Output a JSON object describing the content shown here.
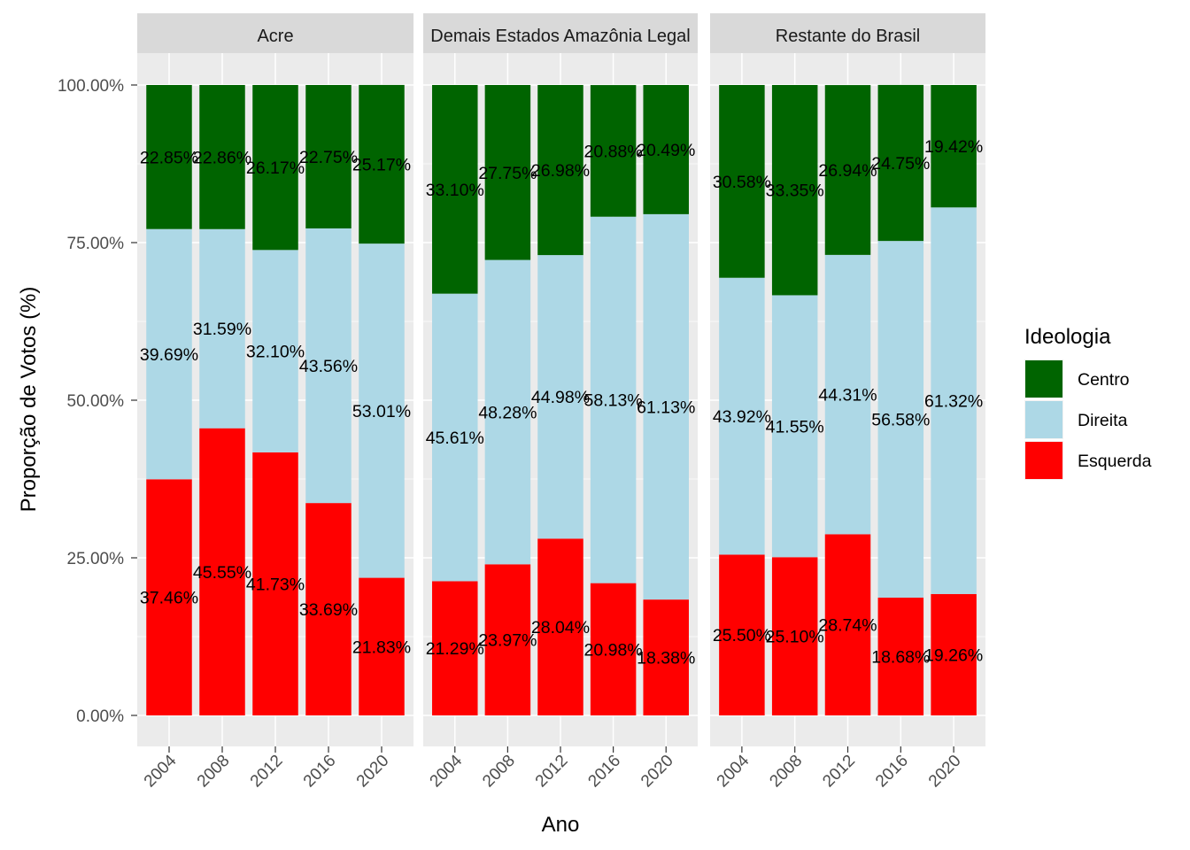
{
  "chart_data": {
    "type": "bar",
    "stacked": true,
    "xlabel": "Ano",
    "ylabel": "Proporção de Votos (%)",
    "ylim": [
      0,
      1
    ],
    "y_ticks": [
      "0.00%",
      "25.00%",
      "50.00%",
      "75.00%",
      "100.00%"
    ],
    "categories": [
      "2004",
      "2008",
      "2012",
      "2016",
      "2020"
    ],
    "legend": {
      "title": "Ideologia",
      "position": "right",
      "items": [
        {
          "label": "Centro",
          "color": "#006400"
        },
        {
          "label": "Direita",
          "color": "#ADD8E6"
        },
        {
          "label": "Esquerda",
          "color": "#FF0000"
        }
      ]
    },
    "facets": [
      {
        "name": "Acre",
        "series": [
          {
            "name": "Esquerda",
            "color": "#FF0000",
            "values": [
              0.3746,
              0.4555,
              0.4173,
              0.3369,
              0.2183
            ],
            "labels": [
              "37.46%",
              "45.55%",
              "41.73%",
              "33.69%",
              "21.83%"
            ]
          },
          {
            "name": "Direita",
            "color": "#ADD8E6",
            "values": [
              0.3969,
              0.3159,
              0.321,
              0.4356,
              0.5301
            ],
            "labels": [
              "39.69%",
              "31.59%",
              "32.10%",
              "43.56%",
              "53.01%"
            ]
          },
          {
            "name": "Centro",
            "color": "#006400",
            "values": [
              0.2285,
              0.2286,
              0.2617,
              0.2275,
              0.2517
            ],
            "labels": [
              "22.85%",
              "22.86%",
              "26.17%",
              "22.75%",
              "25.17%"
            ]
          }
        ]
      },
      {
        "name": "Demais Estados Amazônia Legal",
        "series": [
          {
            "name": "Esquerda",
            "color": "#FF0000",
            "values": [
              0.2129,
              0.2397,
              0.2804,
              0.2098,
              0.1838
            ],
            "labels": [
              "21.29%",
              "23.97%",
              "28.04%",
              "20.98%",
              "18.38%"
            ]
          },
          {
            "name": "Direita",
            "color": "#ADD8E6",
            "values": [
              0.4561,
              0.4828,
              0.4498,
              0.5813,
              0.6113
            ],
            "labels": [
              "45.61%",
              "48.28%",
              "44.98%",
              "58.13%",
              "61.13%"
            ]
          },
          {
            "name": "Centro",
            "color": "#006400",
            "values": [
              0.331,
              0.2775,
              0.2698,
              0.2088,
              0.2049
            ],
            "labels": [
              "33.10%",
              "27.75%",
              "26.98%",
              "20.88%",
              "20.49%"
            ]
          }
        ]
      },
      {
        "name": "Restante do Brasil",
        "series": [
          {
            "name": "Esquerda",
            "color": "#FF0000",
            "values": [
              0.255,
              0.251,
              0.2874,
              0.1868,
              0.1926
            ],
            "labels": [
              "25.50%",
              "25.10%",
              "28.74%",
              "18.68%",
              "19.26%"
            ]
          },
          {
            "name": "Direita",
            "color": "#ADD8E6",
            "values": [
              0.4392,
              0.4155,
              0.4431,
              0.5658,
              0.6132
            ],
            "labels": [
              "43.92%",
              "41.55%",
              "44.31%",
              "56.58%",
              "61.32%"
            ]
          },
          {
            "name": "Centro",
            "color": "#006400",
            "values": [
              0.3058,
              0.3335,
              0.2694,
              0.2475,
              0.1942
            ],
            "labels": [
              "30.58%",
              "33.35%",
              "26.94%",
              "24.75%",
              "19.42%"
            ]
          }
        ]
      }
    ]
  }
}
